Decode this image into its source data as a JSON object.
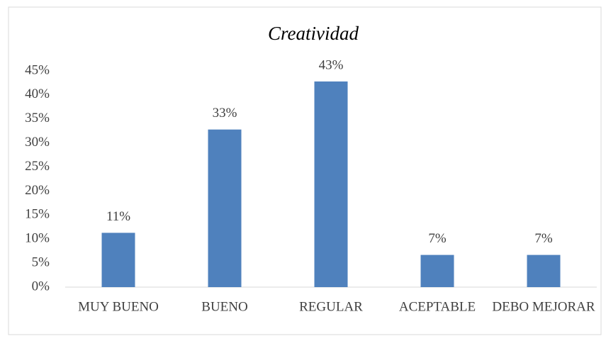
{
  "chart_data": {
    "type": "bar",
    "title": "Creatividad",
    "categories": [
      "MUY BUENO",
      "BUENO",
      "REGULAR",
      "ACEPTABLE",
      "DEBO MEJORAR"
    ],
    "values": [
      11.3,
      32.8,
      42.8,
      6.7,
      6.7
    ],
    "value_labels": [
      "11%",
      "33%",
      "43%",
      "7%",
      "7%"
    ],
    "color": "#4f81bd",
    "ylim": [
      0,
      45
    ],
    "yticks": [
      {
        "value": 0,
        "label": "0%"
      },
      {
        "value": 5,
        "label": "5%"
      },
      {
        "value": 10,
        "label": "10%"
      },
      {
        "value": 15,
        "label": "15%"
      },
      {
        "value": 20,
        "label": "20%"
      },
      {
        "value": 25,
        "label": "25%"
      },
      {
        "value": 30,
        "label": "30%"
      },
      {
        "value": 35,
        "label": "35%"
      },
      {
        "value": 40,
        "label": "40%"
      },
      {
        "value": 45,
        "label": "45%"
      }
    ],
    "grid": false
  }
}
